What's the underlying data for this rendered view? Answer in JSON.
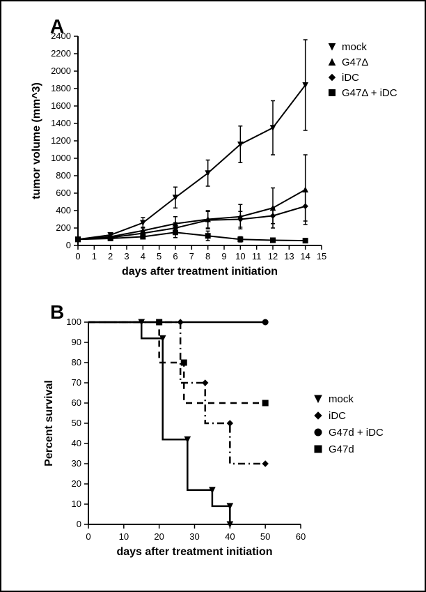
{
  "chartA": {
    "type": "line-errorbar",
    "panel_label": "A",
    "panel_label_fontsize": 28,
    "xlabel": "days after treatment initiation",
    "ylabel": "tumor volume (mm^3)",
    "label_fontsize": 16,
    "tick_fontsize": 13,
    "xlim": [
      0,
      15
    ],
    "ylim": [
      0,
      2400
    ],
    "xtick_step": 1,
    "ytick_step": 200,
    "background_color": "#ffffff",
    "axis_color": "#000000",
    "tick_length": 6,
    "line_width": 2,
    "marker_size": 7,
    "errorbar_cap": 6,
    "legend": [
      {
        "label": "mock",
        "marker": "triangle-down",
        "dash": "solid"
      },
      {
        "label": "G47Δ",
        "marker": "triangle-up",
        "dash": "solid"
      },
      {
        "label": "iDC",
        "marker": "diamond",
        "dash": "solid"
      },
      {
        "label": "G47Δ + iDC",
        "marker": "square",
        "dash": "solid"
      }
    ],
    "legend_fontsize": 15,
    "series": {
      "mock": {
        "color": "#000000",
        "marker": "triangle-down",
        "x": [
          0,
          2,
          4,
          6,
          8,
          10,
          12,
          14
        ],
        "y": [
          70,
          120,
          260,
          550,
          830,
          1160,
          1350,
          1840
        ],
        "err": [
          0,
          20,
          60,
          120,
          150,
          210,
          310,
          520
        ]
      },
      "G47d": {
        "color": "#000000",
        "marker": "triangle-up",
        "x": [
          0,
          2,
          4,
          6,
          8,
          10,
          12,
          14
        ],
        "y": [
          70,
          100,
          170,
          250,
          300,
          330,
          430,
          640
        ],
        "err": [
          0,
          20,
          40,
          80,
          100,
          140,
          230,
          400
        ]
      },
      "iDC": {
        "color": "#000000",
        "marker": "diamond",
        "x": [
          0,
          2,
          4,
          6,
          8,
          10,
          12,
          14
        ],
        "y": [
          70,
          90,
          140,
          200,
          290,
          300,
          340,
          450
        ],
        "err": [
          0,
          15,
          30,
          60,
          100,
          90,
          90,
          170
        ]
      },
      "combo": {
        "color": "#000000",
        "marker": "square",
        "x": [
          0,
          2,
          4,
          6,
          8,
          10,
          12,
          14
        ],
        "y": [
          70,
          80,
          100,
          150,
          110,
          70,
          60,
          55
        ],
        "err": [
          0,
          10,
          25,
          60,
          55,
          30,
          25,
          25
        ]
      }
    }
  },
  "chartB": {
    "type": "survival-step",
    "panel_label": "B",
    "panel_label_fontsize": 28,
    "xlabel": "days after treatment initiation",
    "ylabel": "Percent survival",
    "label_fontsize": 16,
    "tick_fontsize": 13,
    "xlim": [
      0,
      60
    ],
    "ylim": [
      0,
      100
    ],
    "xtick_step": 10,
    "ytick_step": 10,
    "background_color": "#ffffff",
    "axis_color": "#000000",
    "tick_length": 6,
    "line_width": 2.5,
    "marker_size": 8,
    "legend": [
      {
        "label": "mock",
        "marker": "triangle-down",
        "dash": "solid"
      },
      {
        "label": "iDC",
        "marker": "diamond",
        "dash": "dashdot"
      },
      {
        "label": "G47d + iDC",
        "marker": "circle",
        "dash": "solid"
      },
      {
        "label": "G47d",
        "marker": "square",
        "dash": "dash"
      }
    ],
    "legend_fontsize": 15,
    "series": {
      "mock": {
        "color": "#000000",
        "marker": "triangle-down",
        "dash": "solid",
        "steps": [
          [
            0,
            100
          ],
          [
            15,
            100
          ],
          [
            15,
            92
          ],
          [
            21,
            92
          ],
          [
            21,
            42
          ],
          [
            28,
            42
          ],
          [
            28,
            17
          ],
          [
            35,
            17
          ],
          [
            35,
            9
          ],
          [
            40,
            9
          ],
          [
            40,
            0
          ]
        ]
      },
      "iDC": {
        "color": "#000000",
        "marker": "diamond",
        "dash": "dashdot",
        "steps": [
          [
            0,
            100
          ],
          [
            26,
            100
          ],
          [
            26,
            70
          ],
          [
            33,
            70
          ],
          [
            33,
            50
          ],
          [
            40,
            50
          ],
          [
            40,
            30
          ],
          [
            50,
            30
          ]
        ]
      },
      "combo": {
        "color": "#000000",
        "marker": "circle",
        "dash": "solid",
        "steps": [
          [
            0,
            100
          ],
          [
            50,
            100
          ]
        ]
      },
      "G47d": {
        "color": "#000000",
        "marker": "square",
        "dash": "dash",
        "steps": [
          [
            0,
            100
          ],
          [
            20,
            100
          ],
          [
            20,
            80
          ],
          [
            27,
            80
          ],
          [
            27,
            60
          ],
          [
            50,
            60
          ]
        ]
      }
    }
  }
}
